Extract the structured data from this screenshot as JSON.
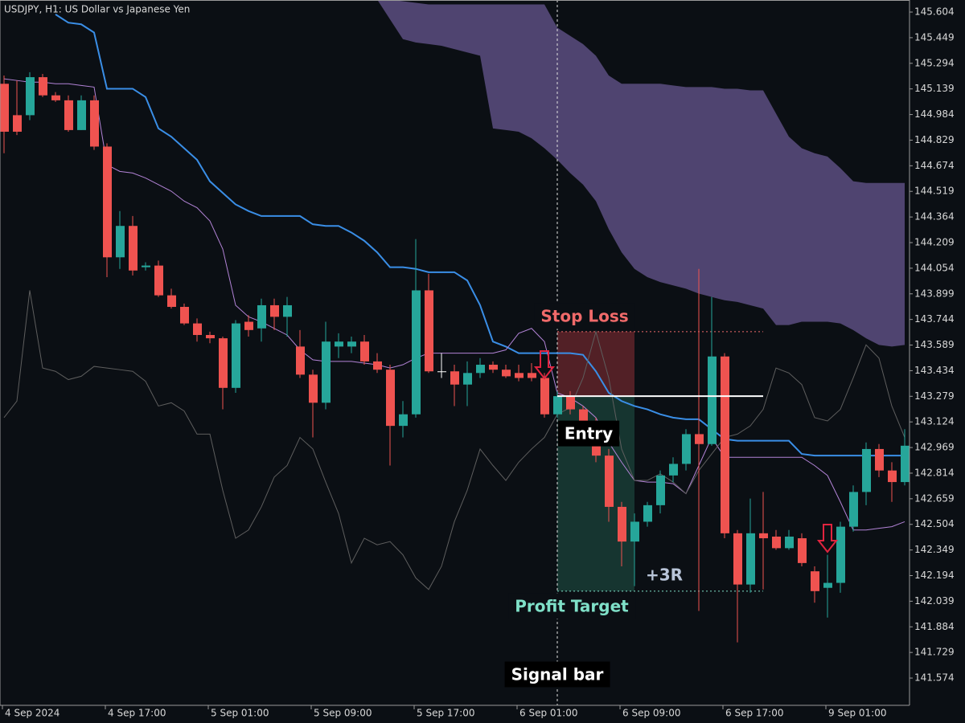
{
  "chart_data": {
    "type": "candlestick",
    "title": "USDJPY, H1:  US Dollar vs Japanese Yen",
    "categories": [
      "4 Sep 2024",
      null,
      null,
      null,
      null,
      null,
      null,
      null,
      "4 Sep 17:00",
      null,
      null,
      null,
      null,
      null,
      null,
      null,
      "5 Sep 01:00",
      null,
      null,
      null,
      null,
      null,
      null,
      null,
      "5 Sep 09:00",
      null,
      null,
      null,
      null,
      null,
      null,
      null,
      "5 Sep 17:00",
      null,
      null,
      null,
      null,
      null,
      null,
      null,
      "6 Sep 01:00",
      null,
      null,
      null,
      null,
      null,
      null,
      null,
      "6 Sep 09:00",
      null,
      null,
      null,
      null,
      null,
      null,
      null,
      "6 Sep 17:00",
      null,
      null,
      null,
      null,
      null,
      null,
      null,
      "9 Sep 01:00",
      null,
      null,
      null,
      null,
      null,
      null
    ],
    "open": [
      145.17,
      144.98,
      144.98,
      145.21,
      145.1,
      145.07,
      144.89,
      145.07,
      144.79,
      144.12,
      144.31,
      144.06,
      144.07,
      143.89,
      143.82,
      143.72,
      143.65,
      143.63,
      143.33,
      143.73,
      143.69,
      143.83,
      143.76,
      143.58,
      143.41,
      143.24,
      143.58,
      143.58,
      143.61,
      143.49,
      143.44,
      143.1,
      143.17,
      143.92,
      143.43,
      143.43,
      143.35,
      143.42,
      143.47,
      143.44,
      143.42,
      143.42,
      143.39,
      143.17,
      143.28,
      143.2,
      143.13,
      142.92,
      142.61,
      142.4,
      142.52,
      142.62,
      142.8,
      142.87,
      143.05,
      142.99,
      143.52,
      142.45,
      142.14,
      142.45,
      142.43,
      142.36,
      142.42,
      142.22,
      142.12,
      142.15,
      142.49,
      142.7,
      142.96,
      142.83,
      142.76
    ],
    "high": [
      145.22,
      145.19,
      145.24,
      145.23,
      145.12,
      145.1,
      145.1,
      145.1,
      144.81,
      144.4,
      144.37,
      144.09,
      144.1,
      143.93,
      143.84,
      143.75,
      143.67,
      143.64,
      143.74,
      143.77,
      143.87,
      143.87,
      143.88,
      143.68,
      143.44,
      143.73,
      143.66,
      143.64,
      143.65,
      143.54,
      143.47,
      143.25,
      144.23,
      144.02,
      143.54,
      143.47,
      143.49,
      143.51,
      143.49,
      143.47,
      143.47,
      143.48,
      143.42,
      143.31,
      143.31,
      143.22,
      143.15,
      142.96,
      142.64,
      142.57,
      142.64,
      142.83,
      142.91,
      143.08,
      144.05,
      143.88,
      143.54,
      142.47,
      142.66,
      142.7,
      142.47,
      142.47,
      142.45,
      142.25,
      142.32,
      142.52,
      142.74,
      143.0,
      142.99,
      142.88,
      143.08
    ],
    "low": [
      144.75,
      144.86,
      144.95,
      145.09,
      145.06,
      144.88,
      144.89,
      144.77,
      144.0,
      144.05,
      144.01,
      144.04,
      143.88,
      143.81,
      143.71,
      143.61,
      143.6,
      143.2,
      143.3,
      143.64,
      143.61,
      143.68,
      143.64,
      143.39,
      143.03,
      143.2,
      143.51,
      143.54,
      143.47,
      143.42,
      142.86,
      143.03,
      143.15,
      143.42,
      143.39,
      143.22,
      143.22,
      143.39,
      143.42,
      143.39,
      143.37,
      143.37,
      143.15,
      143.15,
      143.17,
      143.1,
      142.88,
      142.52,
      142.25,
      142.13,
      142.49,
      142.57,
      142.76,
      142.83,
      141.98,
      142.98,
      142.42,
      141.79,
      142.09,
      142.11,
      142.35,
      142.35,
      142.25,
      142.03,
      141.94,
      142.09,
      142.46,
      142.62,
      142.79,
      142.64,
      142.74
    ],
    "close": [
      144.88,
      144.88,
      145.21,
      145.1,
      145.07,
      144.89,
      145.07,
      144.79,
      144.12,
      144.31,
      144.04,
      144.07,
      143.89,
      143.82,
      143.72,
      143.65,
      143.63,
      143.33,
      143.72,
      143.68,
      143.83,
      143.76,
      143.83,
      143.41,
      143.24,
      143.61,
      143.61,
      143.61,
      143.49,
      143.44,
      143.1,
      143.17,
      143.92,
      143.43,
      143.43,
      143.35,
      143.42,
      143.47,
      143.44,
      143.4,
      143.39,
      143.39,
      143.17,
      143.28,
      143.2,
      143.13,
      142.92,
      142.61,
      142.4,
      142.52,
      142.62,
      142.8,
      142.87,
      143.05,
      142.99,
      143.52,
      142.45,
      142.14,
      142.45,
      142.42,
      142.36,
      142.43,
      142.27,
      142.1,
      142.15,
      142.49,
      142.7,
      142.96,
      142.83,
      142.76,
      142.98
    ],
    "up_color": "#26a69a",
    "down_color": "#ef5350",
    "doji_color": "#ffffff",
    "overlays": [
      {
        "color": "#3a8ee6",
        "width": 2,
        "values": [
          null,
          null,
          null,
          null,
          145.59,
          145.54,
          145.53,
          145.48,
          145.14,
          145.14,
          145.14,
          145.09,
          144.9,
          144.85,
          144.78,
          144.71,
          144.58,
          144.51,
          144.44,
          144.4,
          144.37,
          144.37,
          144.37,
          144.37,
          144.32,
          144.31,
          144.31,
          144.27,
          144.22,
          144.15,
          144.06,
          144.06,
          144.05,
          144.03,
          144.03,
          144.03,
          143.98,
          143.83,
          143.61,
          143.58,
          143.54,
          143.54,
          143.54,
          143.54,
          143.54,
          143.53,
          143.43,
          143.3,
          143.25,
          143.22,
          143.2,
          143.17,
          143.15,
          143.14,
          143.14,
          143.08,
          143.02,
          143.01,
          143.01,
          143.01,
          143.01,
          143.01,
          142.93,
          142.92,
          142.92,
          142.92,
          142.92,
          142.92,
          142.92,
          142.92,
          142.92
        ]
      },
      {
        "color": "#b283d6",
        "width": 1,
        "values": [
          145.2,
          145.19,
          145.18,
          145.18,
          145.17,
          145.17,
          145.16,
          145.15,
          144.68,
          144.64,
          144.63,
          144.6,
          144.56,
          144.52,
          144.46,
          144.42,
          144.34,
          144.17,
          143.83,
          143.76,
          143.73,
          143.69,
          143.65,
          143.56,
          143.5,
          143.49,
          143.49,
          143.49,
          143.48,
          143.47,
          143.45,
          143.47,
          143.51,
          143.54,
          143.54,
          143.54,
          143.54,
          143.54,
          143.54,
          143.56,
          143.66,
          143.69,
          143.61,
          143.3,
          143.27,
          143.22,
          143.15,
          143.0,
          142.88,
          142.77,
          142.76,
          142.76,
          142.75,
          142.69,
          142.86,
          143.03,
          142.91,
          142.91,
          142.91,
          142.91,
          142.91,
          142.91,
          142.91,
          142.86,
          142.8,
          142.64,
          142.47,
          142.47,
          142.48,
          142.49,
          142.52
        ]
      },
      {
        "color": "#5e5e5e",
        "width": 1,
        "values": [
          143.15,
          143.25,
          143.92,
          143.45,
          143.43,
          143.38,
          143.4,
          143.46,
          143.45,
          143.44,
          143.43,
          143.37,
          143.22,
          143.24,
          143.19,
          143.05,
          143.05,
          142.71,
          142.42,
          142.47,
          142.61,
          142.79,
          142.86,
          143.03,
          142.96,
          142.76,
          142.57,
          142.27,
          142.42,
          142.38,
          142.4,
          142.32,
          142.18,
          142.11,
          142.25,
          142.52,
          142.71,
          142.96,
          142.86,
          142.77,
          142.88,
          142.96,
          143.03,
          143.17,
          143.21,
          143.39,
          143.67,
          143.39,
          142.96,
          142.77,
          142.77,
          142.81,
          142.76,
          142.69,
          142.83,
          142.93,
          143.03,
          143.05,
          143.1,
          143.2,
          143.45,
          143.42,
          143.35,
          143.15,
          143.13,
          143.2,
          143.39,
          143.59,
          143.51,
          143.22,
          143.03
        ]
      }
    ],
    "cloud": {
      "color": "#4f4470",
      "upper": [
        null,
        null,
        null,
        null,
        null,
        null,
        null,
        null,
        null,
        null,
        null,
        null,
        null,
        null,
        null,
        null,
        null,
        null,
        null,
        null,
        null,
        null,
        null,
        null,
        null,
        null,
        null,
        null,
        null,
        145.68,
        145.68,
        145.67,
        145.66,
        145.65,
        145.65,
        145.65,
        145.65,
        145.65,
        145.65,
        145.65,
        145.65,
        145.65,
        145.65,
        145.51,
        145.46,
        145.41,
        145.34,
        145.22,
        145.17,
        145.17,
        145.17,
        145.17,
        145.16,
        145.15,
        145.15,
        145.15,
        145.14,
        145.14,
        145.13,
        145.13,
        144.99,
        144.85,
        144.78,
        144.75,
        144.73,
        144.66,
        144.58,
        144.57,
        144.57,
        144.57,
        144.57
      ],
      "lower": [
        null,
        null,
        null,
        null,
        null,
        null,
        null,
        null,
        null,
        null,
        null,
        null,
        null,
        null,
        null,
        null,
        null,
        null,
        null,
        null,
        null,
        null,
        null,
        null,
        null,
        null,
        null,
        null,
        null,
        145.68,
        145.56,
        145.44,
        145.42,
        145.41,
        145.4,
        145.38,
        145.36,
        145.34,
        144.9,
        144.89,
        144.88,
        144.84,
        144.78,
        144.71,
        144.63,
        144.56,
        144.46,
        144.29,
        144.15,
        144.05,
        144.0,
        143.97,
        143.95,
        143.93,
        143.9,
        143.88,
        143.86,
        143.85,
        143.83,
        143.81,
        143.71,
        143.71,
        143.73,
        143.73,
        143.73,
        143.72,
        143.68,
        143.63,
        143.59,
        143.58,
        143.59
      ]
    },
    "trade": {
      "stop_loss": {
        "label": "Stop Loss",
        "value": 143.67,
        "color": "#f06a6a"
      },
      "entry": {
        "label": "Entry",
        "value": 143.28,
        "color": "#ffffff"
      },
      "profit_target": {
        "label": "Profit Target",
        "value": 142.1,
        "color": "#7fe0c8"
      },
      "reward_label": "+3R",
      "signal_label": "Signal bar"
    },
    "ylim": [
      141.409,
      145.677
    ],
    "yticks": [
      145.604,
      145.449,
      145.294,
      145.139,
      144.984,
      144.829,
      144.674,
      144.519,
      144.364,
      144.209,
      144.054,
      143.899,
      143.744,
      143.589,
      143.434,
      143.279,
      143.124,
      142.969,
      142.814,
      142.659,
      142.504,
      142.349,
      142.194,
      142.039,
      141.884,
      141.729,
      141.574
    ]
  }
}
